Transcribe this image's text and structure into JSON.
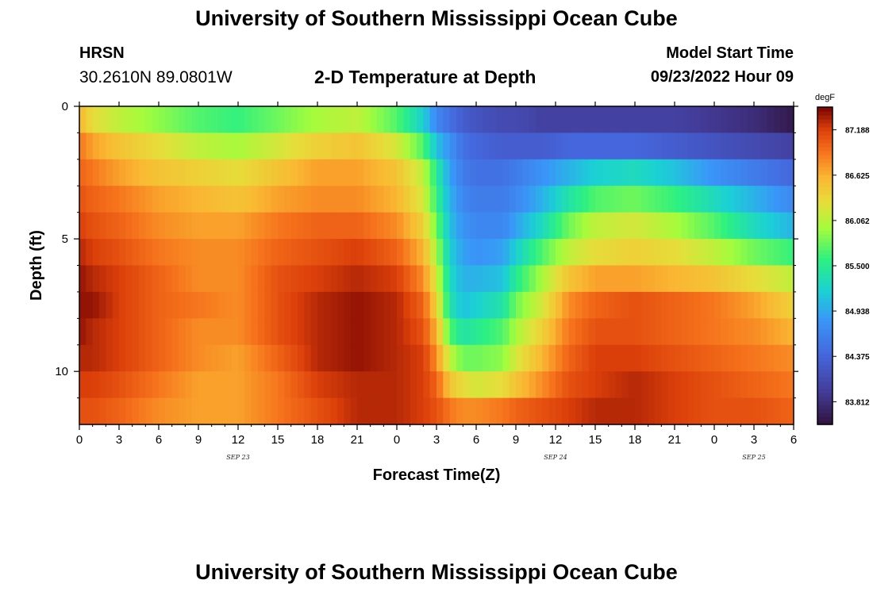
{
  "header": {
    "title": "University of Southern Mississippi Ocean Cube",
    "station": "HRSN",
    "coords": "30.2610N  89.0801W",
    "subtitle": "2-D Temperature at Depth",
    "model_label": "Model Start Time",
    "model_time": "09/23/2022 Hour 09"
  },
  "footer": {
    "title": "University of Southern Mississippi Ocean Cube"
  },
  "chart_data": {
    "type": "heatmap",
    "title": "2-D Temperature at Depth",
    "xlabel": "Forecast Time(Z)",
    "ylabel": "Depth (ft)",
    "x_range_hours": [
      0,
      54
    ],
    "x_tick_labels": [
      "0",
      "3",
      "6",
      "9",
      "12",
      "15",
      "18",
      "21",
      "0",
      "3",
      "6",
      "9",
      "12",
      "15",
      "18",
      "21",
      "0",
      "3",
      "6"
    ],
    "date_labels": [
      {
        "text": "SEP 23",
        "x_hour": 12
      },
      {
        "text": "SEP 24",
        "x_hour": 36
      },
      {
        "text": "SEP 25",
        "x_hour": 51
      }
    ],
    "y_range": [
      0,
      12
    ],
    "y_tick_labels": [
      "0",
      "5",
      "10"
    ],
    "colorbar": {
      "unit": "degF",
      "labels": [
        "87.188",
        "86.625",
        "86.062",
        "85.500",
        "84.938",
        "84.375",
        "83.812"
      ],
      "range": [
        83.53,
        87.47
      ]
    },
    "depth_levels_ft": [
      0.5,
      1.5,
      2.5,
      3.5,
      4.5,
      5.5,
      6.5,
      7.5,
      8.5,
      9.5,
      10.5,
      11.5
    ],
    "time_knots_hours": [
      0,
      1,
      3,
      6,
      9,
      12,
      15,
      18,
      21,
      24,
      26,
      27,
      28,
      29,
      30,
      32,
      33,
      35,
      37,
      39,
      42,
      45,
      48,
      51,
      54
    ],
    "temperature_degF": [
      [
        86.6,
        86.3,
        86.1,
        85.9,
        85.7,
        85.6,
        85.8,
        86.0,
        86.1,
        85.7,
        85.2,
        84.7,
        84.5,
        84.3,
        84.2,
        84.1,
        84.1,
        84.0,
        84.0,
        84.0,
        84.0,
        84.0,
        83.9,
        83.8,
        83.6
      ],
      [
        86.9,
        86.7,
        86.5,
        86.3,
        86.1,
        86.0,
        86.2,
        86.4,
        86.5,
        86.2,
        85.7,
        85.1,
        84.8,
        84.5,
        84.4,
        84.3,
        84.3,
        84.3,
        84.4,
        84.4,
        84.4,
        84.3,
        84.2,
        84.1,
        84.0
      ],
      [
        87.0,
        86.9,
        86.7,
        86.5,
        86.4,
        86.3,
        86.5,
        86.7,
        86.7,
        86.5,
        86.1,
        85.5,
        84.9,
        84.6,
        84.5,
        84.5,
        84.6,
        84.8,
        85.0,
        85.2,
        85.3,
        85.1,
        84.8,
        84.6,
        84.4
      ],
      [
        87.1,
        87.0,
        86.9,
        86.7,
        86.6,
        86.5,
        86.7,
        86.8,
        86.8,
        86.6,
        86.2,
        85.6,
        85.0,
        84.7,
        84.6,
        84.6,
        84.7,
        85.0,
        85.4,
        85.7,
        85.8,
        85.6,
        85.3,
        85.0,
        84.7
      ],
      [
        87.2,
        87.1,
        87.0,
        86.8,
        86.7,
        86.7,
        86.9,
        87.0,
        87.0,
        86.8,
        86.4,
        85.8,
        85.1,
        84.8,
        84.7,
        84.7,
        84.9,
        85.3,
        85.8,
        86.1,
        86.2,
        86.0,
        85.7,
        85.3,
        85.0
      ],
      [
        87.3,
        87.2,
        87.1,
        86.9,
        86.8,
        86.8,
        87.0,
        87.1,
        87.2,
        87.0,
        86.6,
        86.0,
        85.2,
        84.9,
        84.8,
        84.9,
        85.2,
        85.7,
        86.1,
        86.3,
        86.4,
        86.3,
        86.1,
        85.8,
        85.6
      ],
      [
        87.4,
        87.3,
        87.2,
        87.0,
        86.8,
        86.8,
        87.1,
        87.2,
        87.3,
        87.2,
        86.8,
        86.2,
        85.3,
        85.0,
        85.0,
        85.1,
        85.5,
        86.0,
        86.5,
        86.7,
        86.7,
        86.6,
        86.5,
        86.3,
        86.1
      ],
      [
        87.4,
        87.4,
        87.2,
        87.0,
        86.9,
        86.8,
        87.1,
        87.3,
        87.4,
        87.3,
        87.0,
        86.4,
        85.4,
        85.1,
        85.2,
        85.4,
        85.8,
        86.2,
        86.8,
        87.0,
        87.1,
        87.0,
        86.9,
        86.7,
        86.4
      ],
      [
        87.4,
        87.3,
        87.2,
        87.0,
        86.8,
        86.8,
        87.1,
        87.3,
        87.4,
        87.3,
        87.1,
        86.6,
        85.7,
        85.4,
        85.5,
        85.7,
        86.0,
        86.4,
        86.9,
        87.1,
        87.1,
        87.0,
        86.9,
        86.8,
        86.6
      ],
      [
        87.3,
        87.3,
        87.2,
        87.0,
        86.8,
        86.7,
        87.0,
        87.3,
        87.4,
        87.3,
        87.2,
        86.8,
        86.1,
        85.8,
        85.8,
        85.9,
        86.2,
        86.6,
        87.0,
        87.2,
        87.2,
        87.1,
        87.0,
        86.9,
        86.8
      ],
      [
        87.2,
        87.2,
        87.1,
        86.9,
        86.7,
        86.7,
        86.9,
        87.2,
        87.3,
        87.3,
        87.2,
        87.0,
        86.5,
        86.3,
        86.2,
        86.3,
        86.5,
        86.8,
        87.1,
        87.2,
        87.3,
        87.2,
        87.1,
        87.0,
        86.9
      ],
      [
        87.1,
        87.1,
        87.0,
        86.8,
        86.7,
        86.7,
        86.9,
        87.1,
        87.3,
        87.3,
        87.2,
        87.1,
        86.9,
        86.8,
        86.8,
        86.9,
        87.0,
        87.1,
        87.2,
        87.3,
        87.3,
        87.2,
        87.1,
        87.1,
        87.0
      ]
    ]
  }
}
